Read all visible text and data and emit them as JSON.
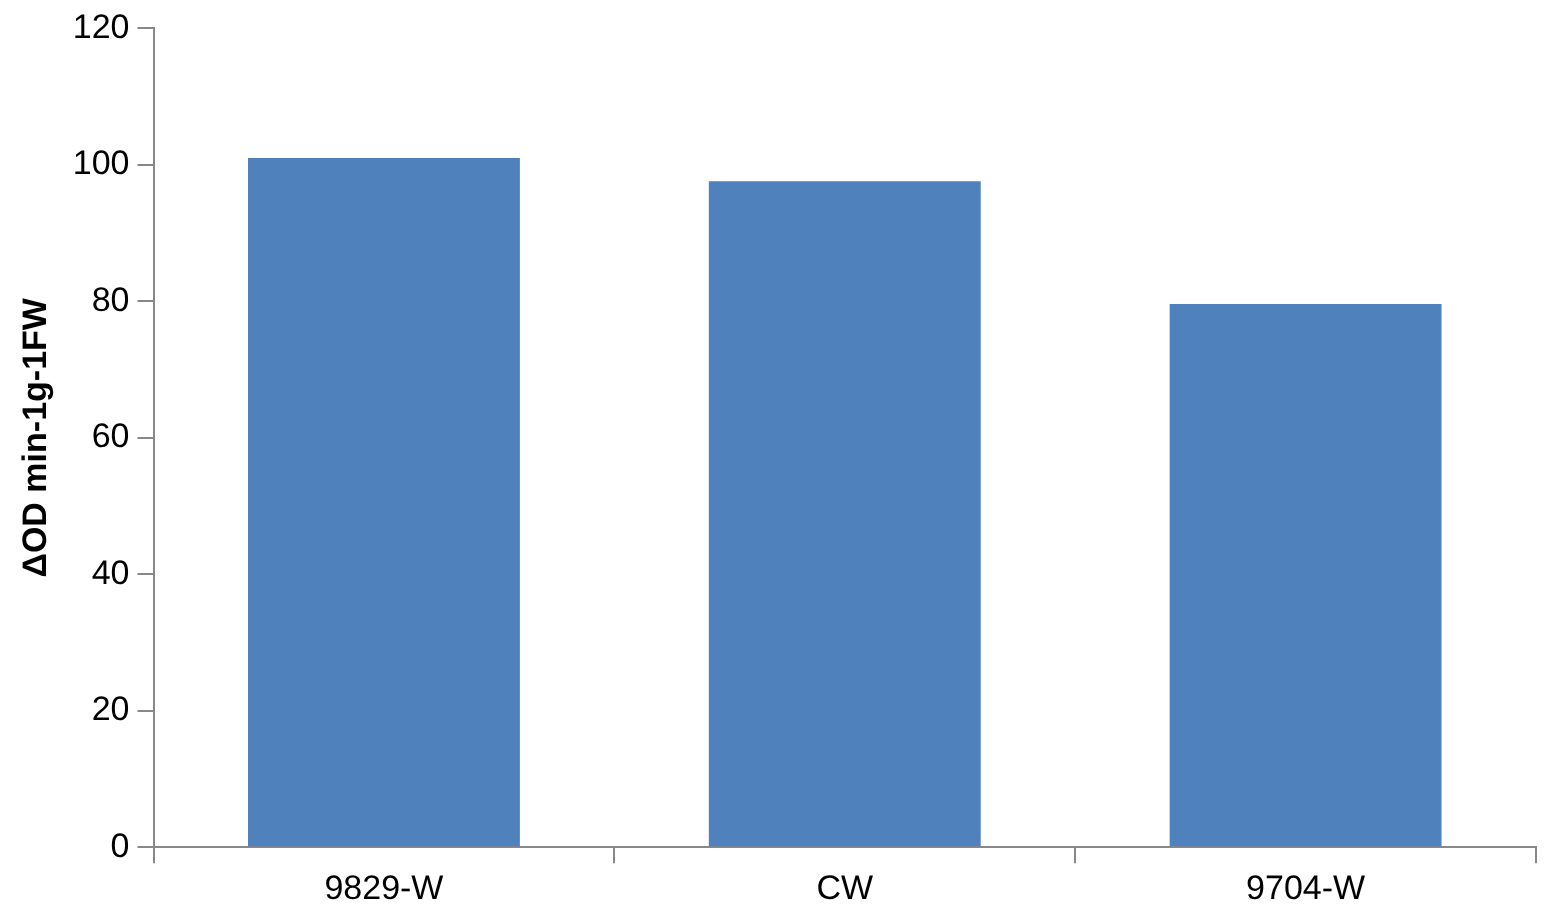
{
  "chart_data": {
    "type": "bar",
    "ylabel": "ΔOD min-1g-1FW",
    "categories": [
      "9829-W",
      "CW",
      "9704-W"
    ],
    "values": [
      101,
      97.6,
      79.6
    ],
    "color": "#4f81bd",
    "ylim": [
      0,
      120
    ],
    "yticks": [
      0,
      20,
      40,
      60,
      80,
      100,
      120
    ],
    "grid": false,
    "legend": false
  }
}
